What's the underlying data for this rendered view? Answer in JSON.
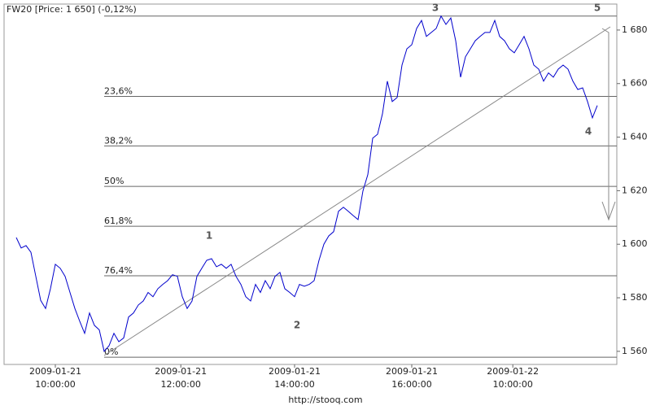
{
  "chart_data": {
    "type": "line",
    "title": "FW20 [Price: 1 650] (-0,12%)",
    "footer": "http://stooq.com",
    "x": [
      0,
      1,
      2,
      3,
      4,
      5,
      6,
      7,
      8,
      9,
      10,
      11,
      12,
      13,
      14,
      15,
      16,
      17,
      18,
      19,
      20,
      21,
      22,
      23,
      24,
      25,
      26,
      27,
      28,
      29,
      30,
      31,
      32,
      33,
      34,
      35,
      36,
      37,
      38,
      39,
      40,
      41,
      42,
      43,
      44,
      45,
      46,
      47,
      48,
      49,
      50,
      51,
      52,
      53,
      54,
      55,
      56,
      57,
      58,
      59,
      60,
      61,
      62,
      63,
      64,
      65,
      66,
      67,
      68,
      69,
      70,
      71,
      72,
      73,
      74,
      75,
      76,
      77,
      78,
      79,
      80,
      81,
      82,
      83,
      84,
      85,
      86,
      87,
      88,
      89,
      90,
      91,
      92,
      93,
      94,
      95,
      96,
      97,
      98,
      99,
      100,
      101,
      102,
      103,
      104,
      105,
      106,
      107,
      108,
      109,
      110,
      111,
      112,
      113,
      114,
      115,
      116,
      117,
      118,
      119
    ],
    "values": [
      1602.5,
      1598.6,
      1599.5,
      1597,
      1588,
      1579,
      1576,
      1583.4,
      1592.5,
      1591,
      1588,
      1582,
      1576,
      1571.2,
      1566.7,
      1574.3,
      1569.7,
      1568,
      1560,
      1562.1,
      1566.7,
      1563.6,
      1565,
      1572.8,
      1574.3,
      1577.3,
      1578.8,
      1582,
      1580.4,
      1583.4,
      1585,
      1586.4,
      1588.6,
      1588,
      1580.4,
      1576,
      1578.8,
      1588,
      1591,
      1594,
      1594.6,
      1591.6,
      1592.5,
      1591,
      1592.5,
      1588,
      1585,
      1580.4,
      1578.8,
      1585,
      1582,
      1586.4,
      1583.4,
      1588,
      1589.5,
      1583.4,
      1582,
      1580.4,
      1585,
      1584.3,
      1585,
      1586.4,
      1594,
      1600,
      1603.1,
      1604.7,
      1612.3,
      1613.8,
      1612.3,
      1610.7,
      1609.2,
      1619.9,
      1626,
      1639.6,
      1641.1,
      1648.7,
      1660.9,
      1653.3,
      1654.8,
      1666.9,
      1673,
      1674.5,
      1680.6,
      1683.6,
      1677.6,
      1679.1,
      1680.6,
      1685.2,
      1682.1,
      1684.5,
      1676,
      1662.4,
      1670,
      1673,
      1676,
      1677.6,
      1679.1,
      1679.1,
      1683.6,
      1677.6,
      1676,
      1673,
      1671.5,
      1674.5,
      1677.6,
      1673,
      1666.9,
      1665.4,
      1660.9,
      1664,
      1662.4,
      1665.4,
      1666.9,
      1665.4,
      1660.9,
      1657.8,
      1658.4,
      1653.3,
      1647.2,
      1651.8
    ],
    "color": "#0000cc",
    "xlim": [
      -2.5,
      123
    ],
    "xticks": [
      {
        "value": 8,
        "label": [
          "2009-01-21",
          "10:00:00"
        ]
      },
      {
        "value": 33.7,
        "label": [
          "2009-01-21",
          "12:00:00"
        ]
      },
      {
        "value": 57,
        "label": [
          "2009-01-21",
          "14:00:00"
        ]
      },
      {
        "value": 81,
        "label": [
          "2009-01-21",
          "16:00:00"
        ]
      },
      {
        "value": 101.7,
        "label": [
          "2009-01-22",
          "10:00:00"
        ]
      }
    ],
    "ylim": [
      1555.1,
      1689.7
    ],
    "yticks": [
      {
        "value": 1560,
        "label": "1 560"
      },
      {
        "value": 1580,
        "label": "1 580"
      },
      {
        "value": 1600,
        "label": "1 600"
      },
      {
        "value": 1620,
        "label": "1 620"
      },
      {
        "value": 1640,
        "label": "1 640"
      },
      {
        "value": 1660,
        "label": "1 660"
      },
      {
        "value": 1680,
        "label": "1 680"
      }
    ],
    "fib_levels": [
      {
        "value": 1685.2,
        "label": null
      },
      {
        "value": 1655.2,
        "label": "23,6%"
      },
      {
        "value": 1636.7,
        "label": "38,2%"
      },
      {
        "value": 1621.6,
        "label": "50%"
      },
      {
        "value": 1606.7,
        "label": "61,8%"
      },
      {
        "value": 1588.2,
        "label": "76,4%"
      },
      {
        "value": 1557.8,
        "label": "0%"
      }
    ],
    "wave_labels": [
      "1",
      "2",
      "3",
      "4",
      "5"
    ]
  }
}
